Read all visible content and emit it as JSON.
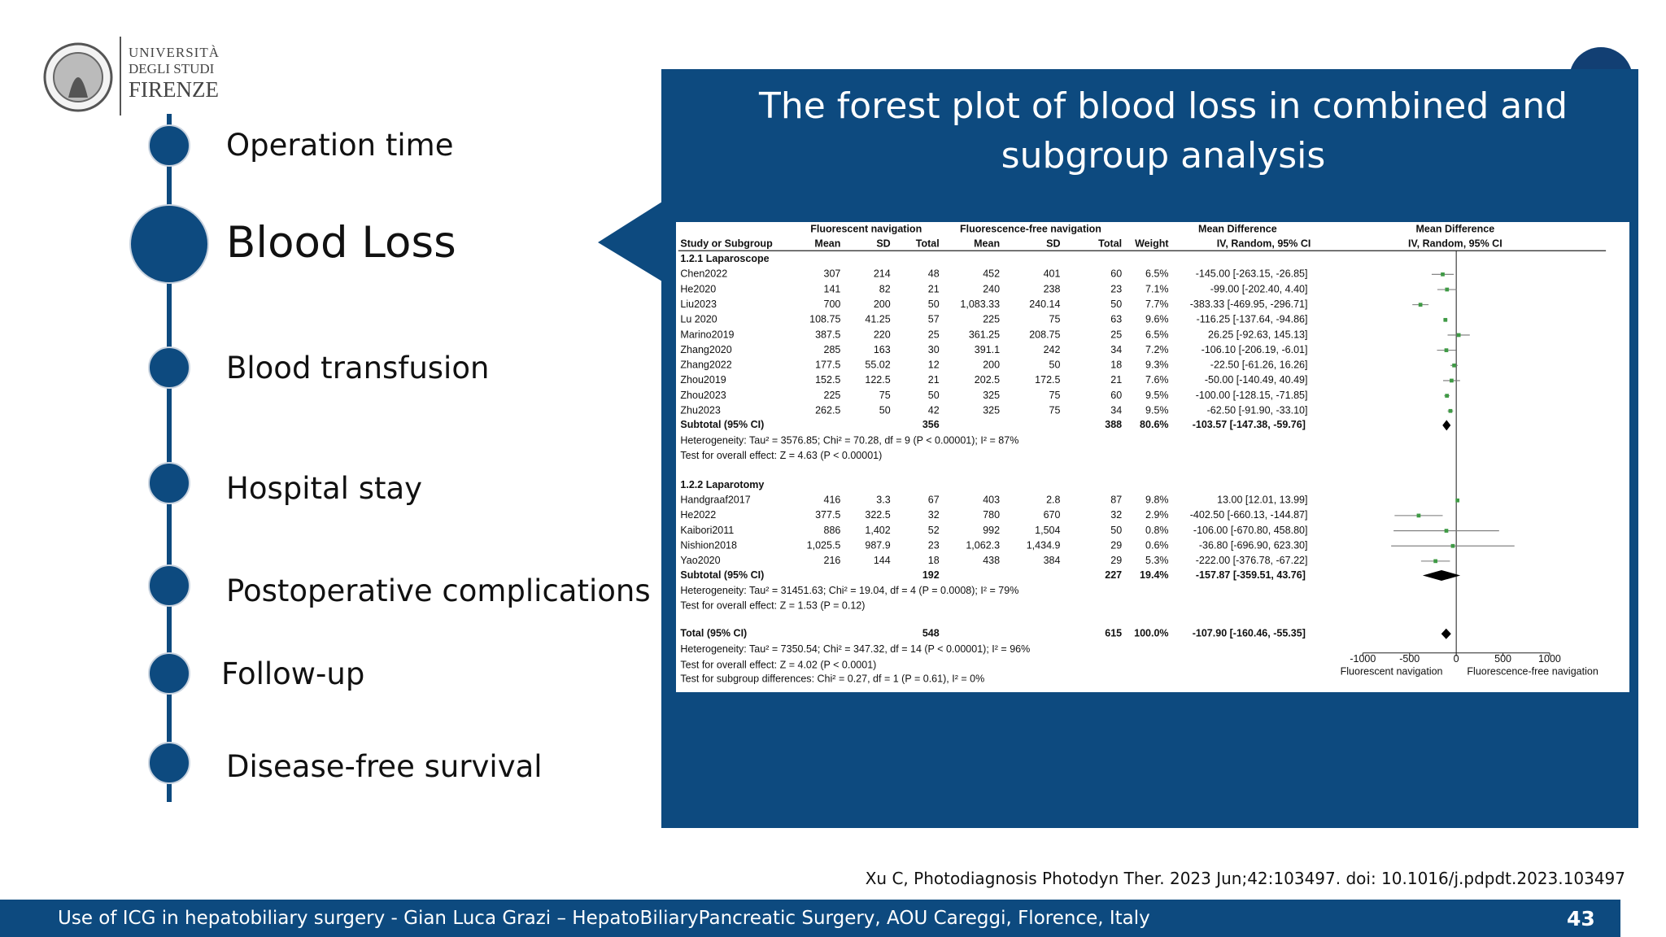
{
  "logo": {
    "lines": [
      "UNIVERSITÀ",
      "DEGLI STUDI",
      "FIRENZE"
    ]
  },
  "timeline": {
    "items": [
      "Operation time",
      "Blood Loss",
      "Blood transfusion",
      "Hospital stay",
      "Postoperative complications",
      "Follow-up",
      "Disease-free survival"
    ]
  },
  "panel": {
    "title_lines": [
      "The forest plot of blood loss in combined and",
      "subgroup analysis"
    ]
  },
  "forest": {
    "headers": {
      "group1": "Fluorescent navigation",
      "group2": "Fluorescence-free navigation",
      "effect": "Mean Difference",
      "plot": "Mean Difference",
      "columns": [
        "Study or Subgroup",
        "Mean",
        "SD",
        "Total",
        "Mean",
        "SD",
        "Total",
        "Weight",
        "IV, Random, 95% CI"
      ],
      "plot_method": "IV, Random, 95% CI"
    },
    "subgroups": [
      {
        "name": "1.2.1 Laparoscope",
        "studies": [
          {
            "cells": [
              "Chen2022",
              "307",
              "214",
              "48",
              "452",
              "401",
              "60",
              "6.5%",
              "-145.00 [-263.15, -26.85]"
            ],
            "md": -145.0,
            "lo": -263.15,
            "hi": -26.85
          },
          {
            "cells": [
              "He2020",
              "141",
              "82",
              "21",
              "240",
              "238",
              "23",
              "7.1%",
              "-99.00 [-202.40, 4.40]"
            ],
            "md": -99.0,
            "lo": -202.4,
            "hi": 4.4
          },
          {
            "cells": [
              "Liu2023",
              "700",
              "200",
              "50",
              "1,083.33",
              "240.14",
              "50",
              "7.7%",
              "-383.33 [-469.95, -296.71]"
            ],
            "md": -383.33,
            "lo": -469.95,
            "hi": -296.71
          },
          {
            "cells": [
              "Lu 2020",
              "108.75",
              "41.25",
              "57",
              "225",
              "75",
              "63",
              "9.6%",
              "-116.25 [-137.64, -94.86]"
            ],
            "md": -116.25,
            "lo": -137.64,
            "hi": -94.86
          },
          {
            "cells": [
              "Marino2019",
              "387.5",
              "220",
              "25",
              "361.25",
              "208.75",
              "25",
              "6.5%",
              "26.25 [-92.63, 145.13]"
            ],
            "md": 26.25,
            "lo": -92.63,
            "hi": 145.13
          },
          {
            "cells": [
              "Zhang2020",
              "285",
              "163",
              "30",
              "391.1",
              "242",
              "34",
              "7.2%",
              "-106.10 [-206.19, -6.01]"
            ],
            "md": -106.1,
            "lo": -206.19,
            "hi": -6.01
          },
          {
            "cells": [
              "Zhang2022",
              "177.5",
              "55.02",
              "12",
              "200",
              "50",
              "18",
              "9.3%",
              "-22.50 [-61.26, 16.26]"
            ],
            "md": -22.5,
            "lo": -61.26,
            "hi": 16.26
          },
          {
            "cells": [
              "Zhou2019",
              "152.5",
              "122.5",
              "21",
              "202.5",
              "172.5",
              "21",
              "7.6%",
              "-50.00 [-140.49, 40.49]"
            ],
            "md": -50.0,
            "lo": -140.49,
            "hi": 40.49
          },
          {
            "cells": [
              "Zhou2023",
              "225",
              "75",
              "50",
              "325",
              "75",
              "60",
              "9.5%",
              "-100.00 [-128.15, -71.85]"
            ],
            "md": -100.0,
            "lo": -128.15,
            "hi": -71.85
          },
          {
            "cells": [
              "Zhu2023",
              "262.5",
              "50",
              "42",
              "325",
              "75",
              "34",
              "9.5%",
              "-62.50 [-91.90, -33.10]"
            ],
            "md": -62.5,
            "lo": -91.9,
            "hi": -33.1
          }
        ],
        "subtotal": {
          "label": "Subtotal (95% CI)",
          "total1": "356",
          "total2": "388",
          "weight": "80.6%",
          "ci": "-103.57 [-147.38, -59.76]",
          "md": -103.57,
          "lo": -147.38,
          "hi": -59.76
        },
        "heterogeneity": "Heterogeneity: Tau² = 3576.85; Chi² = 70.28, df = 9 (P < 0.00001); I² = 87%",
        "overall": "Test for overall effect: Z = 4.63 (P < 0.00001)"
      },
      {
        "name": "1.2.2 Laparotomy",
        "studies": [
          {
            "cells": [
              "Handgraaf2017",
              "416",
              "3.3",
              "67",
              "403",
              "2.8",
              "87",
              "9.8%",
              "13.00 [12.01, 13.99]"
            ],
            "md": 13.0,
            "lo": 12.01,
            "hi": 13.99
          },
          {
            "cells": [
              "He2022",
              "377.5",
              "322.5",
              "32",
              "780",
              "670",
              "32",
              "2.9%",
              "-402.50 [-660.13, -144.87]"
            ],
            "md": -402.5,
            "lo": -660.13,
            "hi": -144.87
          },
          {
            "cells": [
              "Kaibori2011",
              "886",
              "1,402",
              "52",
              "992",
              "1,504",
              "50",
              "0.8%",
              "-106.00 [-670.80, 458.80]"
            ],
            "md": -106.0,
            "lo": -670.8,
            "hi": 458.8
          },
          {
            "cells": [
              "Nishion2018",
              "1,025.5",
              "987.9",
              "23",
              "1,062.3",
              "1,434.9",
              "29",
              "0.6%",
              "-36.80 [-696.90, 623.30]"
            ],
            "md": -36.8,
            "lo": -696.9,
            "hi": 623.3
          },
          {
            "cells": [
              "Yao2020",
              "216",
              "144",
              "18",
              "438",
              "384",
              "29",
              "5.3%",
              "-222.00 [-376.78, -67.22]"
            ],
            "md": -222.0,
            "lo": -376.78,
            "hi": -67.22
          }
        ],
        "subtotal": {
          "label": "Subtotal (95% CI)",
          "total1": "192",
          "total2": "227",
          "weight": "19.4%",
          "ci": "-157.87 [-359.51, 43.76]",
          "md": -157.87,
          "lo": -359.51,
          "hi": 43.76
        },
        "heterogeneity": "Heterogeneity: Tau² = 31451.63; Chi² = 19.04, df = 4 (P = 0.0008); I² = 79%",
        "overall": "Test for overall effect: Z = 1.53 (P = 0.12)"
      }
    ],
    "total": {
      "label": "Total (95% CI)",
      "total1": "548",
      "total2": "615",
      "weight": "100.0%",
      "ci": "-107.90 [-160.46, -55.35]",
      "md": -107.9,
      "lo": -160.46,
      "hi": -55.35
    },
    "total_heterogeneity": "Heterogeneity: Tau² = 7350.54; Chi² = 347.32, df = 14 (P < 0.00001); I² = 96%",
    "total_overall": "Test for overall effect: Z = 4.02 (P < 0.0001)",
    "subgroup_differences": "Test for subgroup differences: Chi² = 0.27, df = 1 (P = 0.61), I² = 0%",
    "xlim": [
      -1000,
      1000
    ],
    "xticks": [
      -1000,
      -500,
      0,
      500,
      1000
    ],
    "axis_labels": {
      "left": "Fluorescent navigation",
      "right": "Fluorescence-free navigation"
    }
  },
  "citation": "Xu C, Photodiagnosis Photodyn Ther. 2023 Jun;42:103497. doi: 10.1016/j.pdpdt.2023.103497",
  "footer": {
    "text": "Use of ICG in hepatobiliary surgery - Gian Luca Grazi – HepatoBiliaryPancreatic Surgery, AOU Careggi, Florence, Italy",
    "page": "43"
  }
}
